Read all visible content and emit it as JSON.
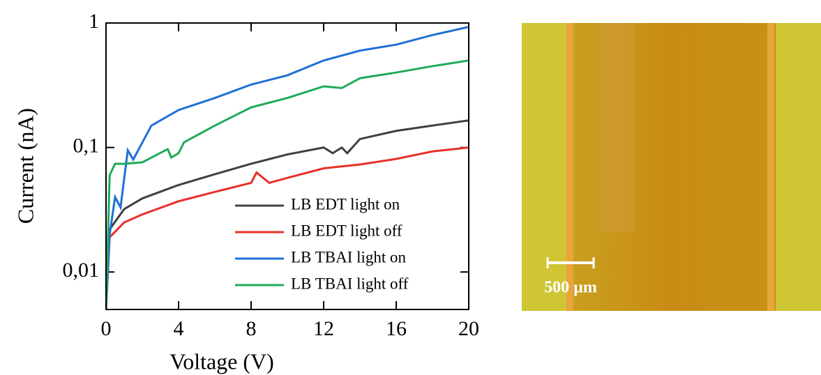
{
  "chart_data": {
    "type": "line",
    "xlabel": "Voltage (V)",
    "ylabel": "Current (nA)",
    "xlim": [
      0,
      20
    ],
    "xticks": [
      0,
      4,
      8,
      12,
      16,
      20
    ],
    "ylim": [
      0.005,
      1
    ],
    "log_y": true,
    "yticks": [
      {
        "value": 0.01,
        "label": "0,01"
      },
      {
        "value": 0.1,
        "label": "0,1"
      },
      {
        "value": 1,
        "label": "1"
      }
    ],
    "legend": "lower right",
    "series": [
      {
        "name": "LB EDT light on",
        "color": "#404040",
        "x": [
          0,
          0.2,
          1,
          2,
          4,
          6,
          8,
          10,
          12,
          12.5,
          13,
          13.3,
          14,
          16,
          18,
          20
        ],
        "values": [
          0.005,
          0.022,
          0.032,
          0.039,
          0.05,
          0.061,
          0.074,
          0.088,
          0.1,
          0.09,
          0.1,
          0.09,
          0.117,
          0.136,
          0.15,
          0.165
        ]
      },
      {
        "name": "LB EDT light off",
        "color": "#e8302a",
        "x": [
          0,
          0.2,
          1,
          2,
          4,
          6,
          8,
          8.3,
          9,
          10,
          12,
          14,
          16,
          18,
          20
        ],
        "values": [
          0.005,
          0.019,
          0.025,
          0.029,
          0.037,
          0.044,
          0.052,
          0.063,
          0.052,
          0.057,
          0.068,
          0.073,
          0.081,
          0.093,
          0.1
        ]
      },
      {
        "name": "LB TBAI light on",
        "color": "#1f6fd6",
        "x": [
          0,
          0.2,
          0.5,
          0.8,
          1.2,
          1.5,
          2.5,
          4,
          6,
          8,
          10,
          12,
          14,
          16,
          18,
          20
        ],
        "values": [
          0.005,
          0.02,
          0.04,
          0.033,
          0.095,
          0.08,
          0.15,
          0.2,
          0.25,
          0.32,
          0.38,
          0.5,
          0.6,
          0.67,
          0.8,
          0.93
        ]
      },
      {
        "name": "LB TBAI light off",
        "color": "#1faa5a",
        "x": [
          0,
          0.2,
          0.5,
          1,
          2,
          3.4,
          3.6,
          4,
          4.3,
          6,
          8,
          10,
          12,
          13,
          14,
          16,
          18,
          20
        ],
        "values": [
          0.005,
          0.06,
          0.074,
          0.074,
          0.076,
          0.097,
          0.083,
          0.09,
          0.11,
          0.15,
          0.21,
          0.25,
          0.31,
          0.3,
          0.36,
          0.4,
          0.45,
          0.5
        ]
      }
    ]
  },
  "image": {
    "scale_bar_label": "500 µm"
  }
}
